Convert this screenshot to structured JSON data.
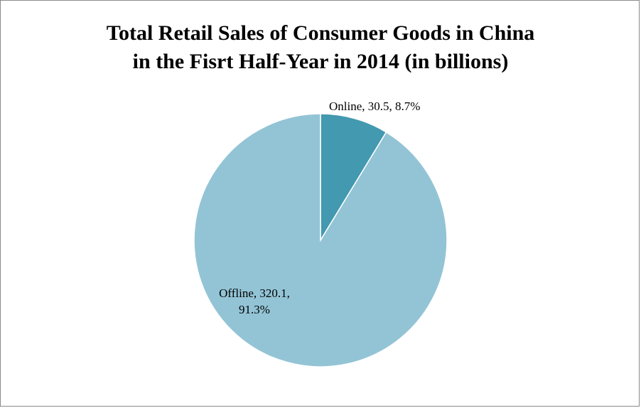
{
  "chart_data": {
    "type": "pie",
    "title_lines": [
      "Total Retail Sales of Consumer Goods in China",
      "in the Fisrt Half-Year in 2014 (in billions)"
    ],
    "slices": [
      {
        "name": "Online",
        "value": 30.5,
        "percent": 8.7,
        "color": "#4299b0",
        "label_lines": [
          "Online, 30.5, 8.7%"
        ]
      },
      {
        "name": "Offline",
        "value": 320.1,
        "percent": 91.3,
        "color": "#93c4d6",
        "label_lines": [
          "Offline, 320.1,",
          "91.3%"
        ]
      }
    ],
    "legend": "none",
    "start_angle": "12 o'clock",
    "direction": "clockwise"
  }
}
